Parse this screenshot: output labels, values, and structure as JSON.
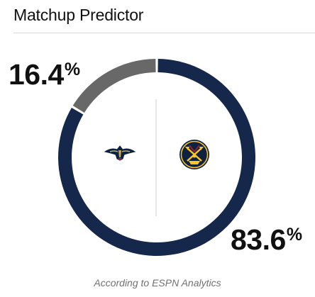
{
  "header": {
    "title": "Matchup Predictor"
  },
  "chart_data": {
    "type": "pie",
    "style": "donut",
    "slices": [
      {
        "team": "New Orleans Pelicans",
        "logo_icon": "pelicans-logo-icon",
        "value": 16.4,
        "color": "#686868",
        "label": "16.4",
        "unit": "%"
      },
      {
        "team": "Denver Nuggets",
        "logo_icon": "nuggets-logo-icon",
        "value": 83.6,
        "color": "#15274a",
        "label": "83.6",
        "unit": "%"
      }
    ],
    "start_angle_deg": 0,
    "direction": "counterclockwise-from-top for first slice"
  },
  "footer": {
    "note": "According to ESPN Analytics"
  }
}
